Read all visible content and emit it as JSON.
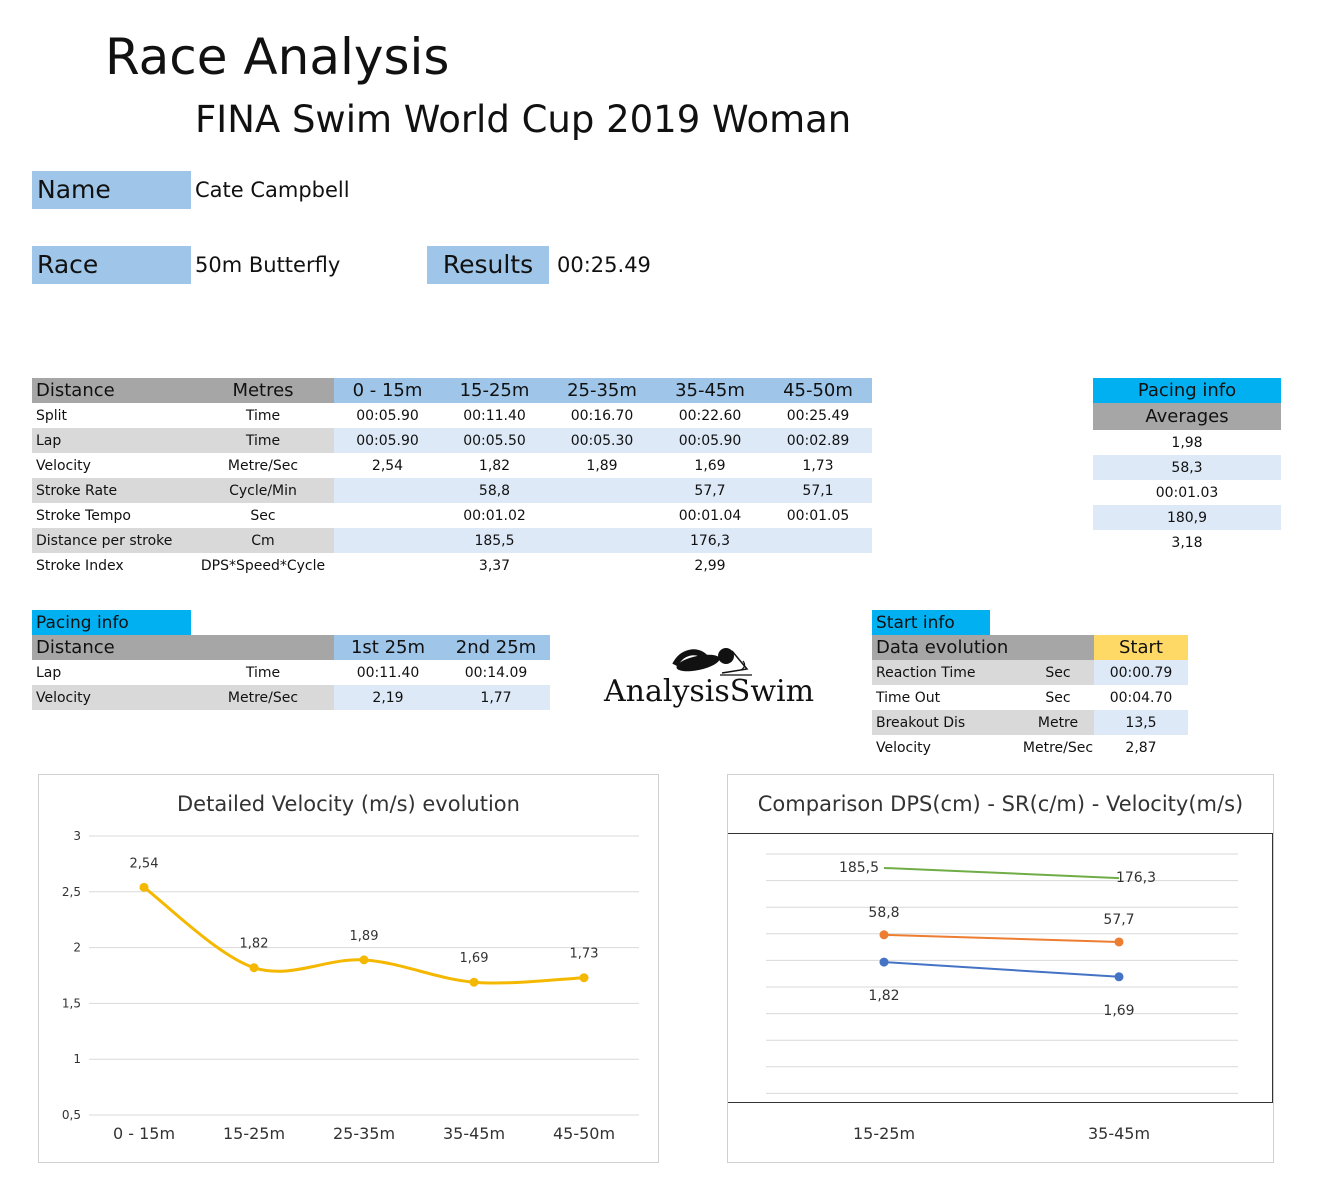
{
  "header": {
    "title": "Race Analysis",
    "subtitle": "FINA Swim World Cup 2019 Woman"
  },
  "info": {
    "name_label": "Name",
    "name_value": "Cate Campbell",
    "race_label": "Race",
    "race_value": "50m Butterfly",
    "results_label": "Results",
    "results_value": "00:25.49"
  },
  "main_table": {
    "header": [
      "Distance",
      "Metres",
      "0 - 15m",
      "15-25m",
      "25-35m",
      "35-45m",
      "45-50m"
    ],
    "rows": [
      [
        "Split",
        "Time",
        "00:05.90",
        "00:11.40",
        "00:16.70",
        "00:22.60",
        "00:25.49"
      ],
      [
        "Lap",
        "Time",
        "00:05.90",
        "00:05.50",
        "00:05.30",
        "00:05.90",
        "00:02.89"
      ],
      [
        "Velocity",
        "Metre/Sec",
        "2,54",
        "1,82",
        "1,89",
        "1,69",
        "1,73"
      ],
      [
        "Stroke Rate",
        "Cycle/Min",
        "",
        "58,8",
        "",
        "57,7",
        "57,1"
      ],
      [
        "Stroke Tempo",
        "Sec",
        "",
        "00:01.02",
        "",
        "00:01.04",
        "00:01.05"
      ],
      [
        "Distance per stroke",
        "Cm",
        "",
        "185,5",
        "",
        "176,3",
        ""
      ],
      [
        "Stroke Index",
        "DPS*Speed*Cycle",
        "",
        "3,37",
        "",
        "2,99",
        ""
      ]
    ]
  },
  "pacing_averages": {
    "title": "Pacing info",
    "subtitle": "Averages",
    "values": [
      "",
      "",
      "1,98",
      "58,3",
      "00:01.03",
      "180,9",
      "3,18"
    ]
  },
  "pacing_table": {
    "tag": "Pacing info",
    "header": [
      "Distance",
      "",
      "1st 25m",
      "2nd 25m"
    ],
    "rows": [
      [
        "Lap",
        "Time",
        "00:11.40",
        "00:14.09"
      ],
      [
        "Velocity",
        "Metre/Sec",
        "2,19",
        "1,77"
      ]
    ]
  },
  "logo": {
    "text": "AnalysisSwim",
    "icon": "swimmer-icon"
  },
  "start_table": {
    "tag": "Start info",
    "header": [
      "Data evolution",
      "",
      "Start"
    ],
    "rows": [
      [
        "Reaction Time",
        "Sec",
        "00:00.79"
      ],
      [
        "Time Out",
        "Sec",
        "00:04.70"
      ],
      [
        "Breakout Dis",
        "Metre",
        "13,5"
      ],
      [
        "Velocity",
        "Metre/Sec",
        "2,87"
      ]
    ]
  },
  "colors": {
    "velocity_line": "#f5b800",
    "dps_line": "#70ad47",
    "sr_line": "#ed7d31",
    "vel_line": "#4472c4"
  },
  "chart_data": [
    {
      "type": "line",
      "title": "Detailed Velocity (m/s)  evolution",
      "categories": [
        "0 - 15m",
        "15-25m",
        "25-35m",
        "35-45m",
        "45-50m"
      ],
      "values": [
        2.54,
        1.82,
        1.89,
        1.69,
        1.73
      ],
      "labels": [
        "2,54",
        "1,82",
        "1,89",
        "1,69",
        "1,73"
      ],
      "yticks": [
        "0,5",
        "1",
        "1,5",
        "2",
        "2,5",
        "3"
      ],
      "ylim": [
        0.5,
        3
      ],
      "smooth": true,
      "grid": true
    },
    {
      "type": "line",
      "title": "Comparison DPS(cm) - SR(c/m) - Velocity(m/s)",
      "categories": [
        "15-25m",
        "35-45m"
      ],
      "series": [
        {
          "name": "DPS",
          "values": [
            185.5,
            176.3
          ],
          "labels": [
            "185,5",
            "176,3"
          ]
        },
        {
          "name": "SR",
          "values": [
            58.8,
            57.7
          ],
          "labels": [
            "58,8",
            "57,7"
          ]
        },
        {
          "name": "Velocity",
          "values": [
            1.82,
            1.69
          ],
          "labels": [
            "1,82",
            "1,69"
          ]
        }
      ],
      "grid": true
    }
  ]
}
